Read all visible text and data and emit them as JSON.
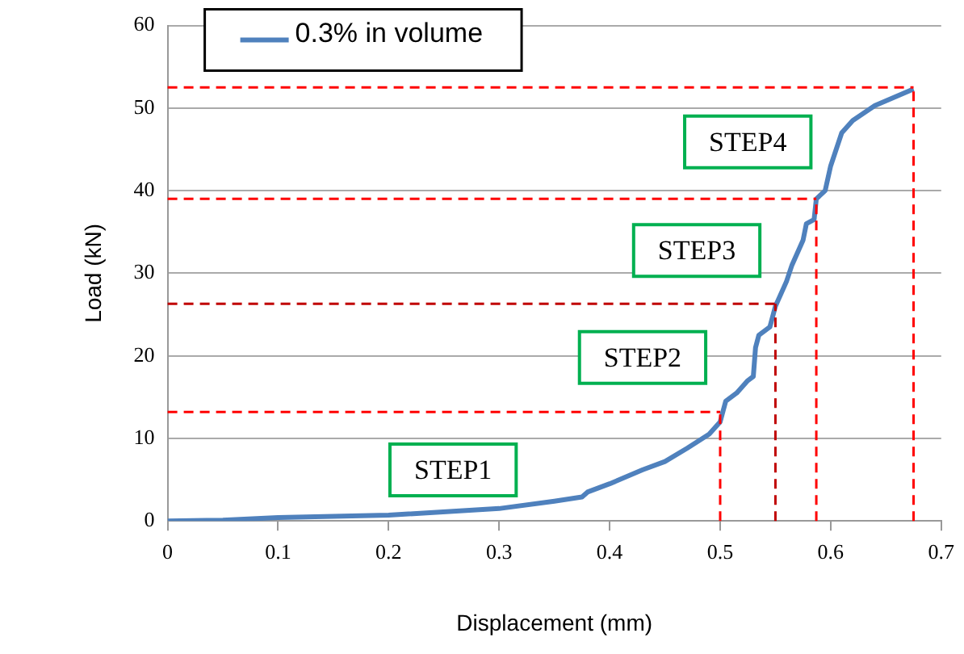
{
  "chart_data": {
    "type": "line",
    "xlabel": "Displacement (mm)",
    "ylabel": "Load (kN)",
    "series": [
      {
        "name": "0.3% in volume",
        "color": "#4f81bd",
        "x": [
          0,
          0.05,
          0.1,
          0.2,
          0.3,
          0.35,
          0.375,
          0.38,
          0.4,
          0.43,
          0.45,
          0.47,
          0.49,
          0.5,
          0.505,
          0.515,
          0.525,
          0.53,
          0.532,
          0.535,
          0.545,
          0.55,
          0.56,
          0.565,
          0.575,
          0.578,
          0.585,
          0.587,
          0.595,
          0.6,
          0.605,
          0.61,
          0.62,
          0.64,
          0.675
        ],
        "values": [
          0,
          0.1,
          0.4,
          0.7,
          1.5,
          2.4,
          2.9,
          3.5,
          4.5,
          6.2,
          7.2,
          8.8,
          10.5,
          12,
          14.5,
          15.5,
          17,
          17.5,
          21,
          22.5,
          23.5,
          26,
          29,
          31,
          34,
          36,
          36.5,
          39,
          40,
          43,
          45,
          47,
          48.5,
          50.3,
          52.3
        ]
      }
    ],
    "xlim": [
      0,
      0.7
    ],
    "xticks": [
      0,
      0.1,
      0.2,
      0.3,
      0.4,
      0.5,
      0.6,
      0.7
    ],
    "ylim": [
      0,
      60
    ],
    "yticks": [
      0,
      10,
      20,
      30,
      40,
      50,
      60
    ],
    "grid": "y",
    "legend": "top left",
    "marker": "none",
    "line_style": "solid",
    "ref_lines": [
      {
        "axis": "y",
        "value": 13.2,
        "color": "#ff0000",
        "line_style": "dashed"
      },
      {
        "axis": "x",
        "value": 0.5,
        "color": "#ff0000",
        "line_style": "dashed"
      },
      {
        "axis": "y",
        "value": 26.3,
        "color": "#c00000",
        "line_style": "dashed"
      },
      {
        "axis": "x",
        "value": 0.55,
        "color": "#c00000",
        "line_style": "dashed"
      },
      {
        "axis": "y",
        "value": 39,
        "color": "#ff0000",
        "line_style": "dashed"
      },
      {
        "axis": "x",
        "value": 0.587,
        "color": "#ff0000",
        "line_style": "dashed"
      },
      {
        "axis": "y",
        "value": 52.5,
        "color": "#ff0000",
        "line_style": "dashed"
      },
      {
        "axis": "x",
        "value": 0.675,
        "color": "#ff0000",
        "line_style": "dashed"
      }
    ],
    "annotations": [
      "STEP1",
      "STEP2",
      "STEP3",
      "STEP4"
    ]
  }
}
